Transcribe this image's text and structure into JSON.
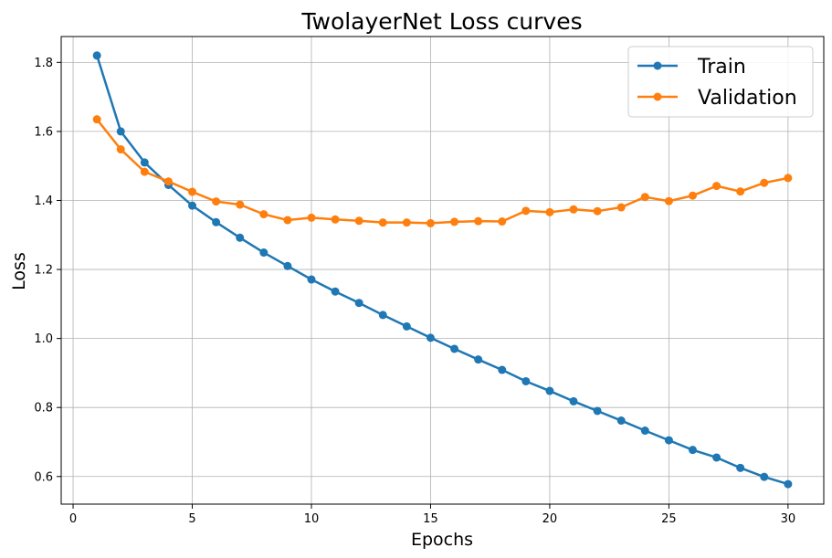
{
  "chart_data": {
    "type": "line",
    "title": "TwolayerNet Loss curves",
    "xlabel": "Epochs",
    "ylabel": "Loss",
    "xlim": [
      -0.5,
      31.5
    ],
    "ylim": [
      0.52,
      1.875
    ],
    "xticks": [
      0,
      5,
      10,
      15,
      20,
      25,
      30
    ],
    "yticks": [
      0.6,
      0.8,
      1.0,
      1.2,
      1.4,
      1.6,
      1.8
    ],
    "grid": true,
    "legend_position": "top-right",
    "x": [
      1,
      2,
      3,
      4,
      5,
      6,
      7,
      8,
      9,
      10,
      11,
      12,
      13,
      14,
      15,
      16,
      17,
      18,
      19,
      20,
      21,
      22,
      23,
      24,
      25,
      26,
      27,
      28,
      29,
      30
    ],
    "series": [
      {
        "name": "Train",
        "color": "#1f77b4",
        "values": [
          1.82,
          1.6,
          1.51,
          1.445,
          1.385,
          1.337,
          1.292,
          1.249,
          1.21,
          1.171,
          1.136,
          1.103,
          1.068,
          1.035,
          1.002,
          0.97,
          0.939,
          0.909,
          0.876,
          0.848,
          0.818,
          0.79,
          0.762,
          0.733,
          0.705,
          0.677,
          0.655,
          0.625,
          0.599,
          0.578
        ]
      },
      {
        "name": "Validation",
        "color": "#ff7f0e",
        "values": [
          1.635,
          1.548,
          1.483,
          1.455,
          1.425,
          1.397,
          1.388,
          1.36,
          1.343,
          1.35,
          1.345,
          1.341,
          1.336,
          1.336,
          1.334,
          1.338,
          1.34,
          1.339,
          1.37,
          1.366,
          1.374,
          1.369,
          1.38,
          1.41,
          1.398,
          1.414,
          1.442,
          1.426,
          1.451,
          1.465
        ]
      }
    ]
  }
}
